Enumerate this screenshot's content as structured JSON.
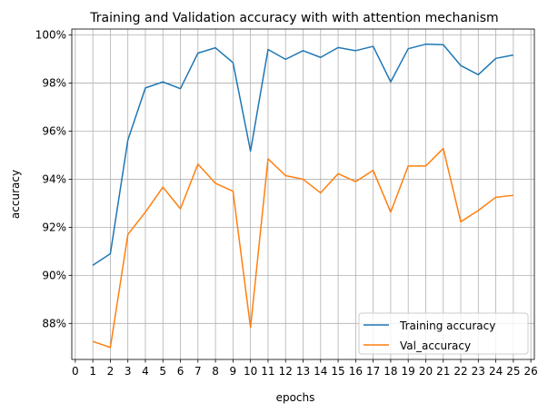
{
  "chart_data": {
    "type": "line",
    "title": "Training and Validation accuracy with with attention mechanism",
    "xlabel": "epochs",
    "ylabel": "accuracy",
    "xlim": [
      -0.2,
      26.2
    ],
    "ylim": [
      86.5,
      100.25
    ],
    "x_ticks": [
      0,
      1,
      2,
      3,
      4,
      5,
      6,
      7,
      8,
      9,
      10,
      11,
      12,
      13,
      14,
      15,
      16,
      17,
      18,
      19,
      20,
      21,
      22,
      23,
      24,
      25,
      26
    ],
    "x_tick_labels": [
      "0",
      "1",
      "2",
      "3",
      "4",
      "5",
      "6",
      "7",
      "8",
      "9",
      "10",
      "11",
      "12",
      "13",
      "14",
      "15",
      "16",
      "17",
      "18",
      "19",
      "20",
      "21",
      "22",
      "23",
      "24",
      "25",
      "26"
    ],
    "y_ticks": [
      88,
      90,
      92,
      94,
      96,
      98,
      100
    ],
    "y_tick_labels": [
      "88%",
      "90%",
      "92%",
      "94%",
      "96%",
      "98%",
      "100%"
    ],
    "grid": true,
    "legend_position": "lower-right",
    "x": [
      1,
      2,
      3,
      4,
      5,
      6,
      7,
      8,
      9,
      10,
      11,
      12,
      13,
      14,
      15,
      16,
      17,
      18,
      19,
      20,
      21,
      22,
      23,
      24,
      25
    ],
    "series": [
      {
        "name": "Training accuracy",
        "color": "#1f77b4",
        "values": [
          90.42,
          90.9,
          95.63,
          97.8,
          98.05,
          97.77,
          99.25,
          99.47,
          98.85,
          95.17,
          99.4,
          98.99,
          99.35,
          99.07,
          99.48,
          99.35,
          99.53,
          98.05,
          99.43,
          99.62,
          99.6,
          98.73,
          98.35,
          99.03,
          99.17
        ]
      },
      {
        "name": "Val_accuracy",
        "color": "#ff7f0e",
        "values": [
          87.25,
          87.0,
          91.7,
          92.63,
          93.67,
          92.77,
          94.63,
          93.83,
          93.5,
          87.83,
          94.85,
          94.15,
          94.0,
          93.43,
          94.23,
          93.9,
          94.37,
          92.63,
          94.55,
          94.55,
          95.28,
          92.23,
          92.7,
          93.25,
          93.33
        ]
      }
    ]
  }
}
